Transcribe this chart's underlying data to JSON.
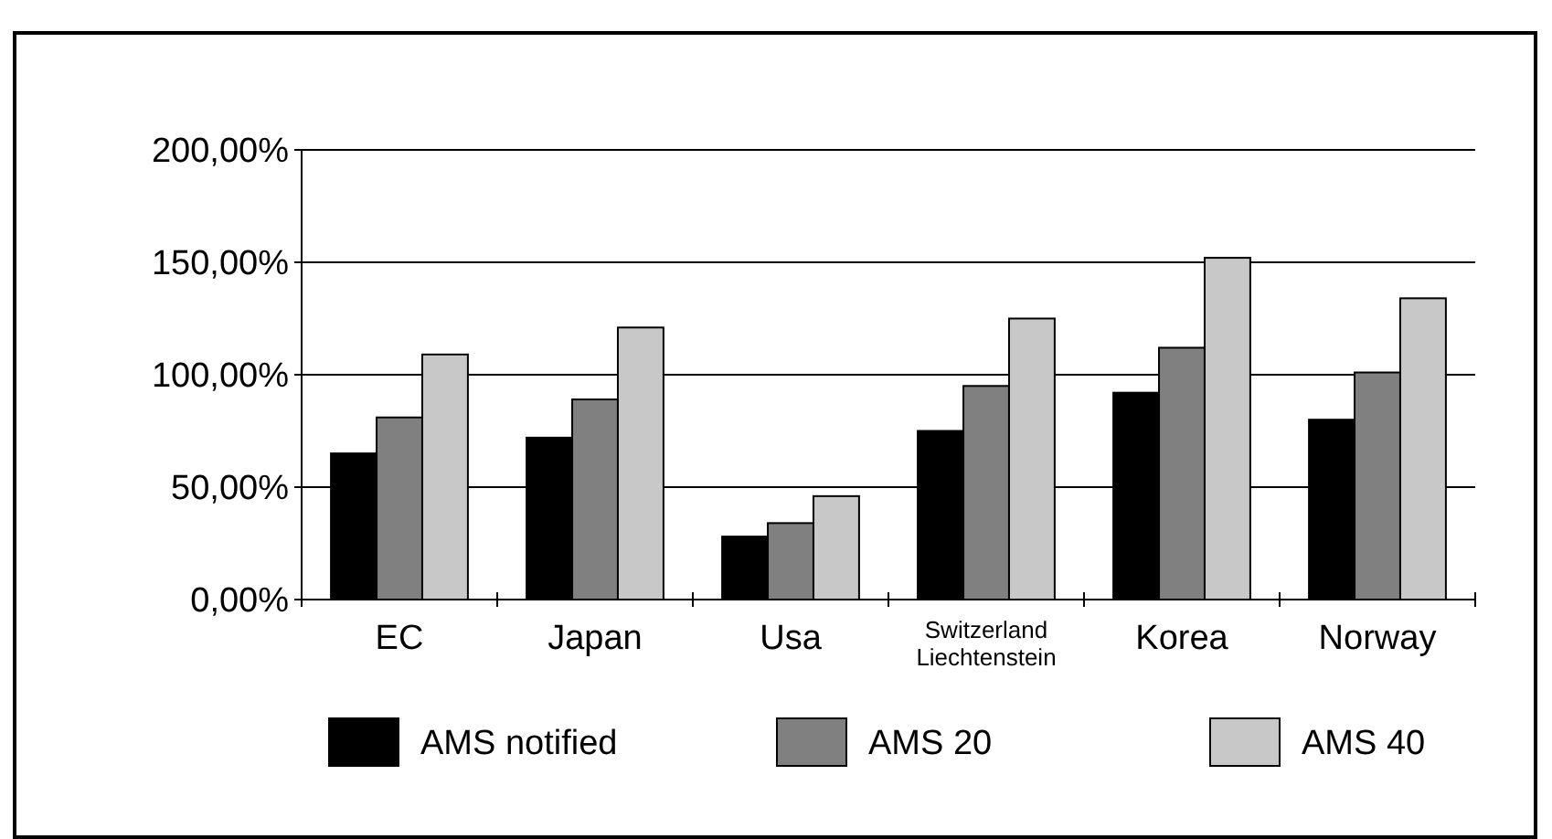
{
  "chart_data": {
    "type": "bar",
    "categories": [
      "EC",
      "Japan",
      "Usa",
      "Switzerland\nLiechtenstein",
      "Korea",
      "Norway"
    ],
    "series": [
      {
        "name": "AMS notified",
        "color": "#000000",
        "values": [
          65,
          72,
          28,
          75,
          92,
          80
        ]
      },
      {
        "name": "AMS 20",
        "color": "#808080",
        "values": [
          81,
          89,
          34,
          95,
          112,
          101
        ]
      },
      {
        "name": "AMS 40",
        "color": "#c8c8c8",
        "values": [
          109,
          121,
          46,
          125,
          152,
          134
        ]
      }
    ],
    "ylim": [
      0,
      200
    ],
    "yticks": [
      {
        "value": 0,
        "label": "0,00%"
      },
      {
        "value": 50,
        "label": "50,00%"
      },
      {
        "value": 100,
        "label": "100,00%"
      },
      {
        "value": 150,
        "label": "150,00%"
      },
      {
        "value": 200,
        "label": "200,00%"
      }
    ],
    "grid": "y",
    "legend": "bottom"
  }
}
